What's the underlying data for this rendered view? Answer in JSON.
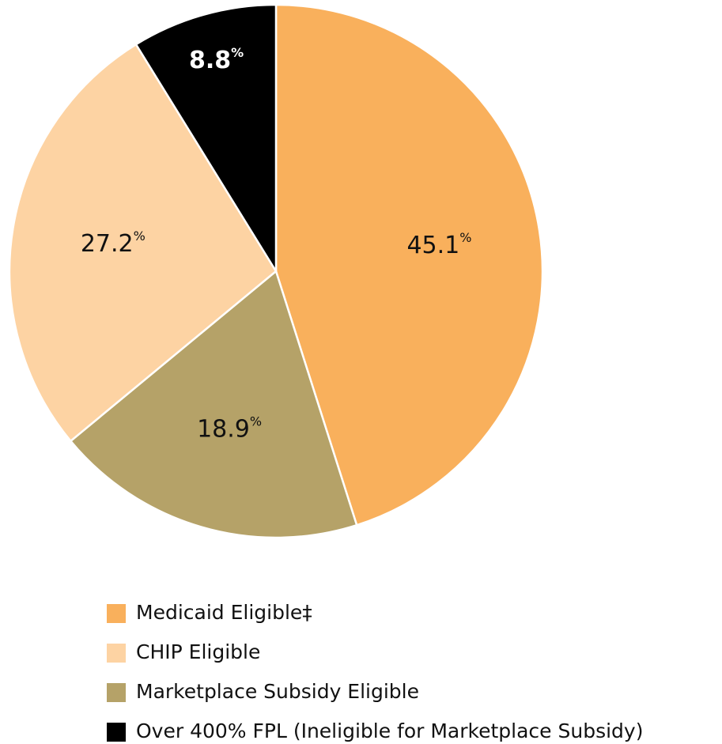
{
  "chart_data": {
    "type": "pie",
    "categories": [
      "Medicaid Eligible‡",
      "Marketplace Subsidy Eligible",
      "CHIP Eligible",
      "Over 400% FPL (Ineligible for Marketplace Subsidy)"
    ],
    "values": [
      45.1,
      18.9,
      27.2,
      8.8
    ],
    "label_unit": "%",
    "colors": [
      "#f9b05c",
      "#b5a268",
      "#fdd3a3",
      "#000000"
    ],
    "label_colors": [
      "#111111",
      "#111111",
      "#111111",
      "#ffffff"
    ],
    "legend_order": [
      0,
      2,
      1,
      3
    ],
    "legend": "bottom"
  }
}
